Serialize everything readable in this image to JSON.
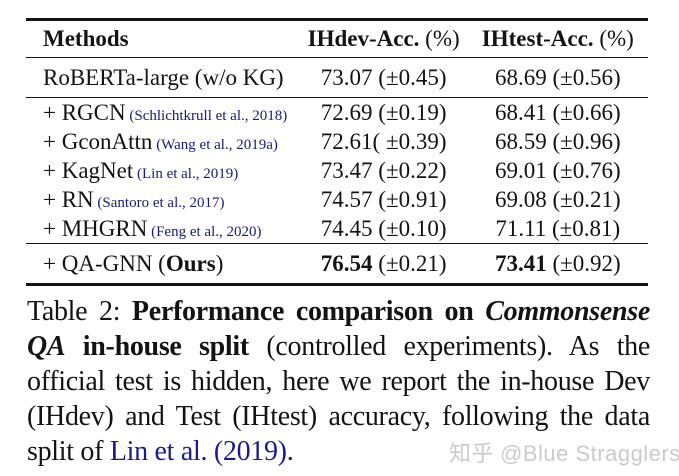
{
  "table": {
    "header": {
      "methods": "Methods",
      "dev": "IHdev-Acc.",
      "dev_unit": " (%)",
      "test": "IHtest-Acc.",
      "test_unit": " (%)"
    },
    "rows": [
      {
        "method": "RoBERTa-large (w/o KG)",
        "citation": "",
        "dev": "73.07",
        "dev_std": " (±0.45)",
        "test": "68.69",
        "test_std": " (±0.56)"
      },
      {
        "method": "+ RGCN",
        "citation": " (Schlichtkrull et al., 2018)",
        "dev": "72.69",
        "dev_std": " (±0.19)",
        "test": "68.41",
        "test_std": " (±0.66)"
      },
      {
        "method": "+ GconAttn",
        "citation": " (Wang et al., 2019a)",
        "dev": "72.61",
        "dev_std": "( ±0.39)",
        "test": "68.59",
        "test_std": " (±0.96)"
      },
      {
        "method": "+ KagNet",
        "citation": " (Lin et al., 2019)",
        "dev": "73.47",
        "dev_std": " (±0.22)",
        "test": "69.01",
        "test_std": " (±0.76)"
      },
      {
        "method": "+ RN",
        "citation": " (Santoro et al., 2017)",
        "dev": "74.57",
        "dev_std": " (±0.91)",
        "test": "69.08",
        "test_std": " (±0.21)"
      },
      {
        "method": "+ MHGRN",
        "citation": " (Feng et al., 2020)",
        "dev": "74.45",
        "dev_std": " (±0.10)",
        "test": "71.11",
        "test_std": " (±0.81)"
      },
      {
        "method": "+ QA-GNN (",
        "method_bold": "Ours",
        "method_suffix": ")",
        "citation": "",
        "dev": "76.54",
        "dev_std": " (±0.21)",
        "test": "73.41",
        "test_std": " (±0.92)"
      }
    ]
  },
  "caption": {
    "label": "Table 2: ",
    "bold_lead": "Performance comparison on ",
    "bold_italic": "Commonsense QA",
    "bold_tail": " in-house split",
    "body": " (controlled experiments).  As the official test is hidden, here we report the in-house Dev (IHdev) and Test (IHtest) accuracy, following the data split of ",
    "citation_link": "Lin et al. (2019)",
    "period": "."
  },
  "watermark": {
    "site": "知乎",
    "handle": "@Blue Stragglers"
  },
  "colors": {
    "text": "#131313",
    "citation_blue": "#191977",
    "link_blue": "#1b1b8a",
    "watermark_gray": "#cbcbcb"
  }
}
